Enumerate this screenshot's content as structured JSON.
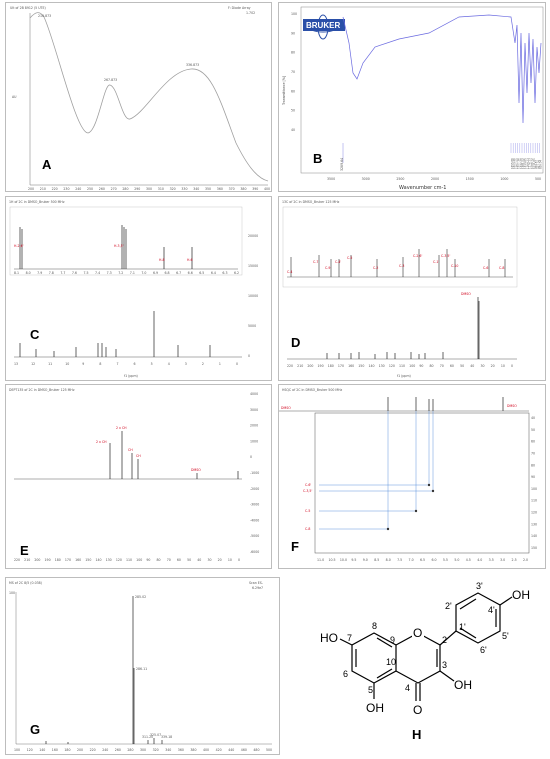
{
  "panels": {
    "A": {
      "label": "A",
      "header_left": "Ult of 2B 8912 (5 UTE)",
      "header_right": "F: Diode Array",
      "header_right2": "1.702",
      "y_axis": "AU",
      "peaks": [
        "210.873",
        "267.873",
        "336.873"
      ],
      "x_ticks": [
        "200",
        "210",
        "220",
        "230",
        "240",
        "250",
        "260",
        "270",
        "280",
        "290",
        "300",
        "310",
        "320",
        "330",
        "340",
        "350",
        "360",
        "370",
        "380",
        "390",
        "400"
      ]
    },
    "B": {
      "label": "B",
      "logo": "BRUKER",
      "ylabel": "Transmittance [%]",
      "xlabel": "Wavenumber cm-1",
      "x_ticks": [
        "3500",
        "3000",
        "2500",
        "2000",
        "1500",
        "1000",
        "500"
      ],
      "y_ticks": [
        "100",
        "90",
        "80",
        "70",
        "60",
        "50",
        "40"
      ],
      "peak_labels": [
        "3289.64",
        "1655.86",
        "1603.46",
        "1567.05",
        "1507.36",
        "1442.28",
        "1381.02",
        "1313.65",
        "1264.23",
        "1176.13",
        "1088.72",
        "1011.61",
        "959.87",
        "887.08",
        "828.04"
      ]
    },
    "C": {
      "label": "C",
      "header": "1H of 2C in DMSO_Bruker 500 MHz",
      "axis": "f1 (ppm)",
      "x_ticks": [
        "13",
        "12",
        "11",
        "10",
        "9",
        "8",
        "7",
        "6",
        "5",
        "4",
        "3",
        "2",
        "1",
        "0"
      ],
      "inset_ticks": [
        "8.1",
        "8.0",
        "7.9",
        "7.8",
        "7.7",
        "7.6",
        "7.5",
        "7.4",
        "7.3",
        "7.2",
        "7.1",
        "7.0",
        "6.9",
        "6.8",
        "6.7",
        "6.6",
        "6.5",
        "6.4",
        "6.3",
        "6.2"
      ],
      "inset_labels": [
        "H-2,6'",
        "H-3,5'",
        "H-8",
        "H-6"
      ],
      "y_ticks": [
        "20000",
        "15000",
        "10000",
        "5000",
        "0"
      ]
    },
    "D": {
      "label": "D",
      "header": "13C of 2C in DMSO_Bruker 125 MHz",
      "axis": "f1 (ppm)",
      "solvent": "DMSO",
      "x_ticks": [
        "220",
        "210",
        "200",
        "190",
        "180",
        "170",
        "160",
        "150",
        "140",
        "130",
        "120",
        "110",
        "100",
        "90",
        "80",
        "70",
        "60",
        "50",
        "40",
        "30",
        "20",
        "10",
        "0"
      ],
      "inset_labels": [
        "C-4",
        "C-7",
        "C-9",
        "C-4'",
        "C-5",
        "C-2",
        "C-3",
        "C-2,6'",
        "C-1'",
        "C-3,5'",
        "C-10",
        "C-6",
        "C-8"
      ]
    },
    "E": {
      "label": "E",
      "header": "DEPT135 of 2C in DMSO_Bruker 125 MHz",
      "solvent": "DMSO",
      "signal_labels": [
        "2 x CH",
        "2 x CH",
        "CH",
        "CH"
      ],
      "x_ticks": [
        "220",
        "210",
        "200",
        "190",
        "180",
        "170",
        "160",
        "150",
        "140",
        "130",
        "120",
        "110",
        "100",
        "90",
        "80",
        "70",
        "60",
        "50",
        "40",
        "30",
        "20",
        "10",
        "0"
      ],
      "y_ticks": [
        "4000",
        "3000",
        "2000",
        "1000",
        "0",
        "-1000",
        "-2000",
        "-3000",
        "-4000",
        "-5000",
        "-6000"
      ]
    },
    "F": {
      "label": "F",
      "header": "HSQC of 2C in DMSO_Bruker 500 MHz",
      "solvent_left": "DMSO",
      "solvent_right": "DMSO",
      "row_labels": [
        "C-6'",
        "C-3,5'",
        "C-5",
        "C-8"
      ],
      "x_ticks": [
        "11.0",
        "10.5",
        "10.0",
        "9.5",
        "9.0",
        "8.5",
        "8.0",
        "7.5",
        "7.0",
        "6.5",
        "6.0",
        "5.5",
        "5.0",
        "4.5",
        "4.0",
        "3.5",
        "3.0",
        "2.5",
        "2.0"
      ],
      "y_ticks": [
        "40",
        "50",
        "60",
        "70",
        "80",
        "90",
        "100",
        "110",
        "120",
        "130",
        "140",
        "150"
      ]
    },
    "G": {
      "label": "G",
      "header": "MS of 2C 8/5 (0.038)",
      "header_right": "Scan ES-",
      "header_right2": "6.29e7",
      "peaks": [
        "285.02",
        "286.11",
        "311.20",
        "325.07",
        "339.18"
      ],
      "x_ticks": [
        "100",
        "120",
        "140",
        "160",
        "180",
        "200",
        "220",
        "240",
        "260",
        "280",
        "300",
        "320",
        "340",
        "360",
        "380",
        "400",
        "420",
        "440",
        "460",
        "480",
        "500"
      ],
      "y_top": "100"
    },
    "H": {
      "label": "H",
      "atoms": {
        "ho_left": "HO",
        "oh_bottom": "OH",
        "oh_right": "OH",
        "oh_top": "OH",
        "o_ring": "O",
        "o_carbonyl": "O"
      },
      "numbers": [
        "7",
        "8",
        "9",
        "10",
        "5",
        "6",
        "4",
        "3",
        "2",
        "1'",
        "2'",
        "3'",
        "4'",
        "5'",
        "6'"
      ]
    }
  }
}
